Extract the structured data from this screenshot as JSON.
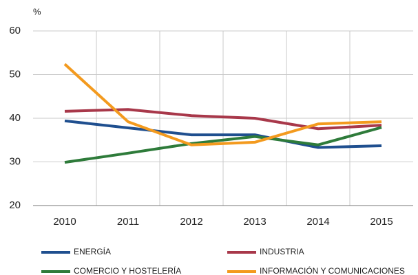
{
  "chart_data": {
    "type": "line",
    "y_unit": "%",
    "categories": [
      "2010",
      "2011",
      "2012",
      "2013",
      "2014",
      "2015"
    ],
    "series": [
      {
        "name": "ENERGÍA",
        "color": "#1f4f8f",
        "values": [
          39.4,
          37.8,
          36.2,
          36.2,
          33.3,
          33.7
        ]
      },
      {
        "name": "INDUSTRIA",
        "color": "#a8384a",
        "values": [
          41.6,
          42.0,
          40.6,
          40.0,
          37.6,
          38.4
        ]
      },
      {
        "name": "COMERCIO Y HOSTELERÍA",
        "color": "#2e7b3a",
        "values": [
          29.9,
          32.0,
          34.2,
          35.8,
          33.9,
          37.9
        ]
      },
      {
        "name": "INFORMACIÓN Y COMUNICACIONES",
        "color": "#f39a1e",
        "values": [
          52.4,
          39.2,
          33.9,
          34.5,
          38.7,
          39.2
        ]
      }
    ],
    "ylim": [
      20,
      60
    ],
    "yticks": [
      20,
      30,
      40,
      50,
      60
    ],
    "grid": true
  }
}
